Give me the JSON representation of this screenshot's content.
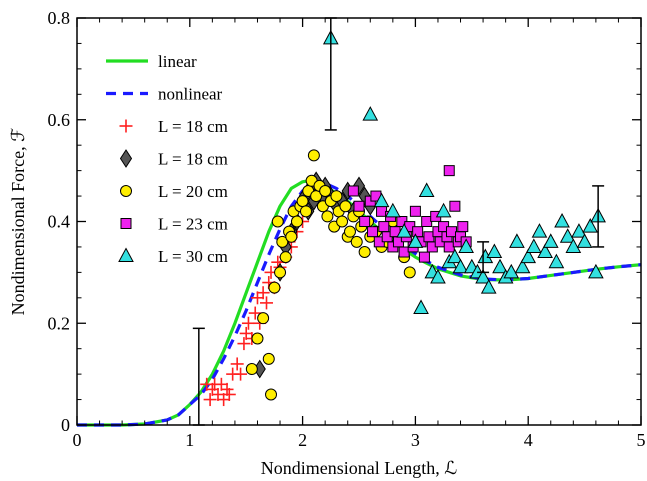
{
  "chart_data": {
    "type": "scatter",
    "title": "",
    "xlabel": "Nondimensional Length, ℒ",
    "ylabel": "Nondimensional Force, ℱ",
    "xlim": [
      0,
      5
    ],
    "ylim": [
      0,
      0.8
    ],
    "x_ticks": [
      0,
      1,
      2,
      3,
      4,
      5
    ],
    "x_tick_labels": [
      "0",
      "1",
      "2",
      "3",
      "4",
      "5"
    ],
    "y_ticks": [
      0,
      0.2,
      0.4,
      0.6,
      0.8
    ],
    "y_tick_labels": [
      "0",
      "0.2",
      "0.4",
      "0.6",
      "0.8"
    ],
    "grid": false,
    "legend_position": "top-left",
    "series": [
      {
        "name": "linear",
        "kind": "line",
        "style": "solid",
        "color": "#22dd22",
        "x": [
          0,
          0.4,
          0.6,
          0.8,
          0.9,
          1.0,
          1.1,
          1.2,
          1.3,
          1.4,
          1.5,
          1.6,
          1.7,
          1.8,
          1.9,
          2.0,
          2.05,
          2.1,
          2.2,
          2.3,
          2.4,
          2.5,
          2.6,
          2.7,
          2.8,
          2.9,
          3.0,
          3.1,
          3.2,
          3.4,
          3.6,
          3.8,
          4.0,
          4.2,
          4.4,
          4.6,
          4.8,
          5.0
        ],
        "y": [
          0,
          0.0,
          0.002,
          0.01,
          0.02,
          0.04,
          0.065,
          0.1,
          0.145,
          0.2,
          0.26,
          0.32,
          0.38,
          0.43,
          0.465,
          0.478,
          0.48,
          0.478,
          0.47,
          0.455,
          0.44,
          0.42,
          0.4,
          0.38,
          0.36,
          0.345,
          0.33,
          0.318,
          0.307,
          0.293,
          0.286,
          0.285,
          0.288,
          0.294,
          0.3,
          0.306,
          0.311,
          0.315
        ]
      },
      {
        "name": "nonlinear",
        "kind": "line",
        "style": "dashed",
        "color": "#1a1aff",
        "x": [
          0,
          0.4,
          0.6,
          0.8,
          0.9,
          1.0,
          1.1,
          1.2,
          1.3,
          1.4,
          1.5,
          1.6,
          1.7,
          1.8,
          1.9,
          2.0,
          2.1,
          2.15,
          2.2,
          2.3,
          2.4,
          2.5,
          2.6,
          2.7,
          2.8,
          2.9,
          3.0,
          3.1,
          3.2,
          3.4,
          3.6,
          3.8,
          4.0,
          4.2,
          4.4,
          4.6,
          4.8,
          5.0
        ],
        "y": [
          0,
          0.0,
          0.002,
          0.01,
          0.02,
          0.04,
          0.06,
          0.09,
          0.13,
          0.175,
          0.225,
          0.28,
          0.335,
          0.385,
          0.43,
          0.46,
          0.475,
          0.477,
          0.475,
          0.465,
          0.45,
          0.43,
          0.41,
          0.39,
          0.37,
          0.352,
          0.337,
          0.322,
          0.31,
          0.295,
          0.287,
          0.285,
          0.288,
          0.294,
          0.3,
          0.306,
          0.311,
          0.315
        ]
      },
      {
        "name": "L = 18 cm",
        "kind": "scatter",
        "marker": "plus",
        "color": "#ff2020",
        "x": [
          1.15,
          1.18,
          1.2,
          1.22,
          1.25,
          1.28,
          1.3,
          1.33,
          1.35,
          1.38,
          1.42,
          1.45,
          1.48,
          1.5,
          1.52,
          1.55,
          1.58,
          1.6,
          1.62,
          1.65,
          1.68,
          1.7,
          1.72,
          1.75,
          1.78,
          1.8,
          1.85,
          1.88,
          1.9,
          1.95,
          2.0
        ],
        "y": [
          0.08,
          0.05,
          0.07,
          0.08,
          0.06,
          0.08,
          0.05,
          0.07,
          0.06,
          0.1,
          0.12,
          0.1,
          0.16,
          0.18,
          0.2,
          0.17,
          0.22,
          0.25,
          0.2,
          0.26,
          0.24,
          0.28,
          0.3,
          0.27,
          0.32,
          0.31,
          0.33,
          0.36,
          0.35,
          0.38,
          0.4
        ]
      },
      {
        "name": "L = 18 cm",
        "kind": "scatter",
        "marker": "diamond",
        "color": "#555555",
        "x": [
          1.62,
          1.8,
          1.85,
          1.9,
          1.95,
          2.0,
          2.02,
          2.05,
          2.08,
          2.1,
          2.12,
          2.15,
          2.18,
          2.2,
          2.25,
          2.3,
          2.35,
          2.4,
          2.45,
          2.5,
          2.55,
          2.6
        ],
        "y": [
          0.11,
          0.3,
          0.35,
          0.38,
          0.4,
          0.43,
          0.45,
          0.42,
          0.47,
          0.44,
          0.48,
          0.46,
          0.45,
          0.47,
          0.45,
          0.43,
          0.44,
          0.46,
          0.42,
          0.47,
          0.45,
          0.43
        ]
      },
      {
        "name": "L = 20 cm",
        "kind": "scatter",
        "marker": "circle",
        "color": "#ffee00",
        "x": [
          1.55,
          1.6,
          1.65,
          1.7,
          1.72,
          1.75,
          1.78,
          1.8,
          1.82,
          1.85,
          1.88,
          1.9,
          1.92,
          1.95,
          1.98,
          2.0,
          2.03,
          2.05,
          2.08,
          2.1,
          2.12,
          2.15,
          2.18,
          2.2,
          2.22,
          2.25,
          2.28,
          2.3,
          2.32,
          2.35,
          2.38,
          2.4,
          2.42,
          2.45,
          2.48,
          2.5,
          2.52,
          2.55,
          2.58,
          2.6,
          2.65,
          2.7,
          2.75,
          2.8,
          2.85,
          2.9,
          2.95
        ],
        "y": [
          0.11,
          0.17,
          0.21,
          0.13,
          0.06,
          0.27,
          0.4,
          0.3,
          0.36,
          0.33,
          0.38,
          0.37,
          0.42,
          0.4,
          0.43,
          0.44,
          0.42,
          0.46,
          0.48,
          0.53,
          0.45,
          0.47,
          0.43,
          0.46,
          0.41,
          0.44,
          0.39,
          0.45,
          0.42,
          0.4,
          0.43,
          0.37,
          0.38,
          0.41,
          0.36,
          0.42,
          0.39,
          0.34,
          0.4,
          0.37,
          0.38,
          0.35,
          0.36,
          0.4,
          0.37,
          0.33,
          0.3
        ]
      },
      {
        "name": "L = 23 cm",
        "kind": "scatter",
        "marker": "square",
        "color": "#ee22ee",
        "x": [
          2.45,
          2.5,
          2.55,
          2.6,
          2.62,
          2.65,
          2.68,
          2.7,
          2.72,
          2.75,
          2.78,
          2.8,
          2.82,
          2.85,
          2.88,
          2.9,
          2.92,
          2.95,
          2.98,
          3.0,
          3.02,
          3.05,
          3.08,
          3.1,
          3.12,
          3.15,
          3.18,
          3.2,
          3.22,
          3.25,
          3.28,
          3.3,
          3.32,
          3.35,
          3.38,
          3.4,
          3.42,
          3.45,
          3.3
        ],
        "y": [
          0.46,
          0.43,
          0.4,
          0.44,
          0.38,
          0.45,
          0.36,
          0.42,
          0.39,
          0.37,
          0.41,
          0.35,
          0.38,
          0.36,
          0.4,
          0.34,
          0.37,
          0.39,
          0.35,
          0.42,
          0.38,
          0.36,
          0.33,
          0.4,
          0.37,
          0.35,
          0.41,
          0.38,
          0.36,
          0.39,
          0.37,
          0.35,
          0.38,
          0.43,
          0.36,
          0.37,
          0.39,
          0.36,
          0.5
        ]
      },
      {
        "name": "L = 30 cm",
        "kind": "scatter",
        "marker": "triangle",
        "color": "#33e0e0",
        "x": [
          2.25,
          2.6,
          2.7,
          2.8,
          2.9,
          3.0,
          3.05,
          3.1,
          3.15,
          3.2,
          3.25,
          3.3,
          3.35,
          3.4,
          3.45,
          3.5,
          3.55,
          3.6,
          3.62,
          3.65,
          3.7,
          3.75,
          3.8,
          3.85,
          3.9,
          3.95,
          4.0,
          4.05,
          4.1,
          4.15,
          4.2,
          4.25,
          4.3,
          4.35,
          4.4,
          4.45,
          4.5,
          4.55,
          4.6,
          4.62
        ],
        "y": [
          0.76,
          0.61,
          0.44,
          0.42,
          0.38,
          0.36,
          0.23,
          0.46,
          0.3,
          0.29,
          0.42,
          0.32,
          0.33,
          0.31,
          0.35,
          0.31,
          0.3,
          0.29,
          0.33,
          0.27,
          0.34,
          0.31,
          0.29,
          0.3,
          0.36,
          0.31,
          0.33,
          0.35,
          0.38,
          0.34,
          0.36,
          0.32,
          0.4,
          0.37,
          0.35,
          0.38,
          0.36,
          0.39,
          0.3,
          0.41
        ]
      }
    ],
    "error_bars": [
      {
        "x": 1.08,
        "y_low": 0.0,
        "y_high": 0.19
      },
      {
        "x": 2.25,
        "y_low": 0.58,
        "y_high": 0.8
      },
      {
        "x": 3.6,
        "y_low": 0.3,
        "y_high": 0.36
      },
      {
        "x": 4.62,
        "y_low": 0.35,
        "y_high": 0.47
      }
    ]
  }
}
